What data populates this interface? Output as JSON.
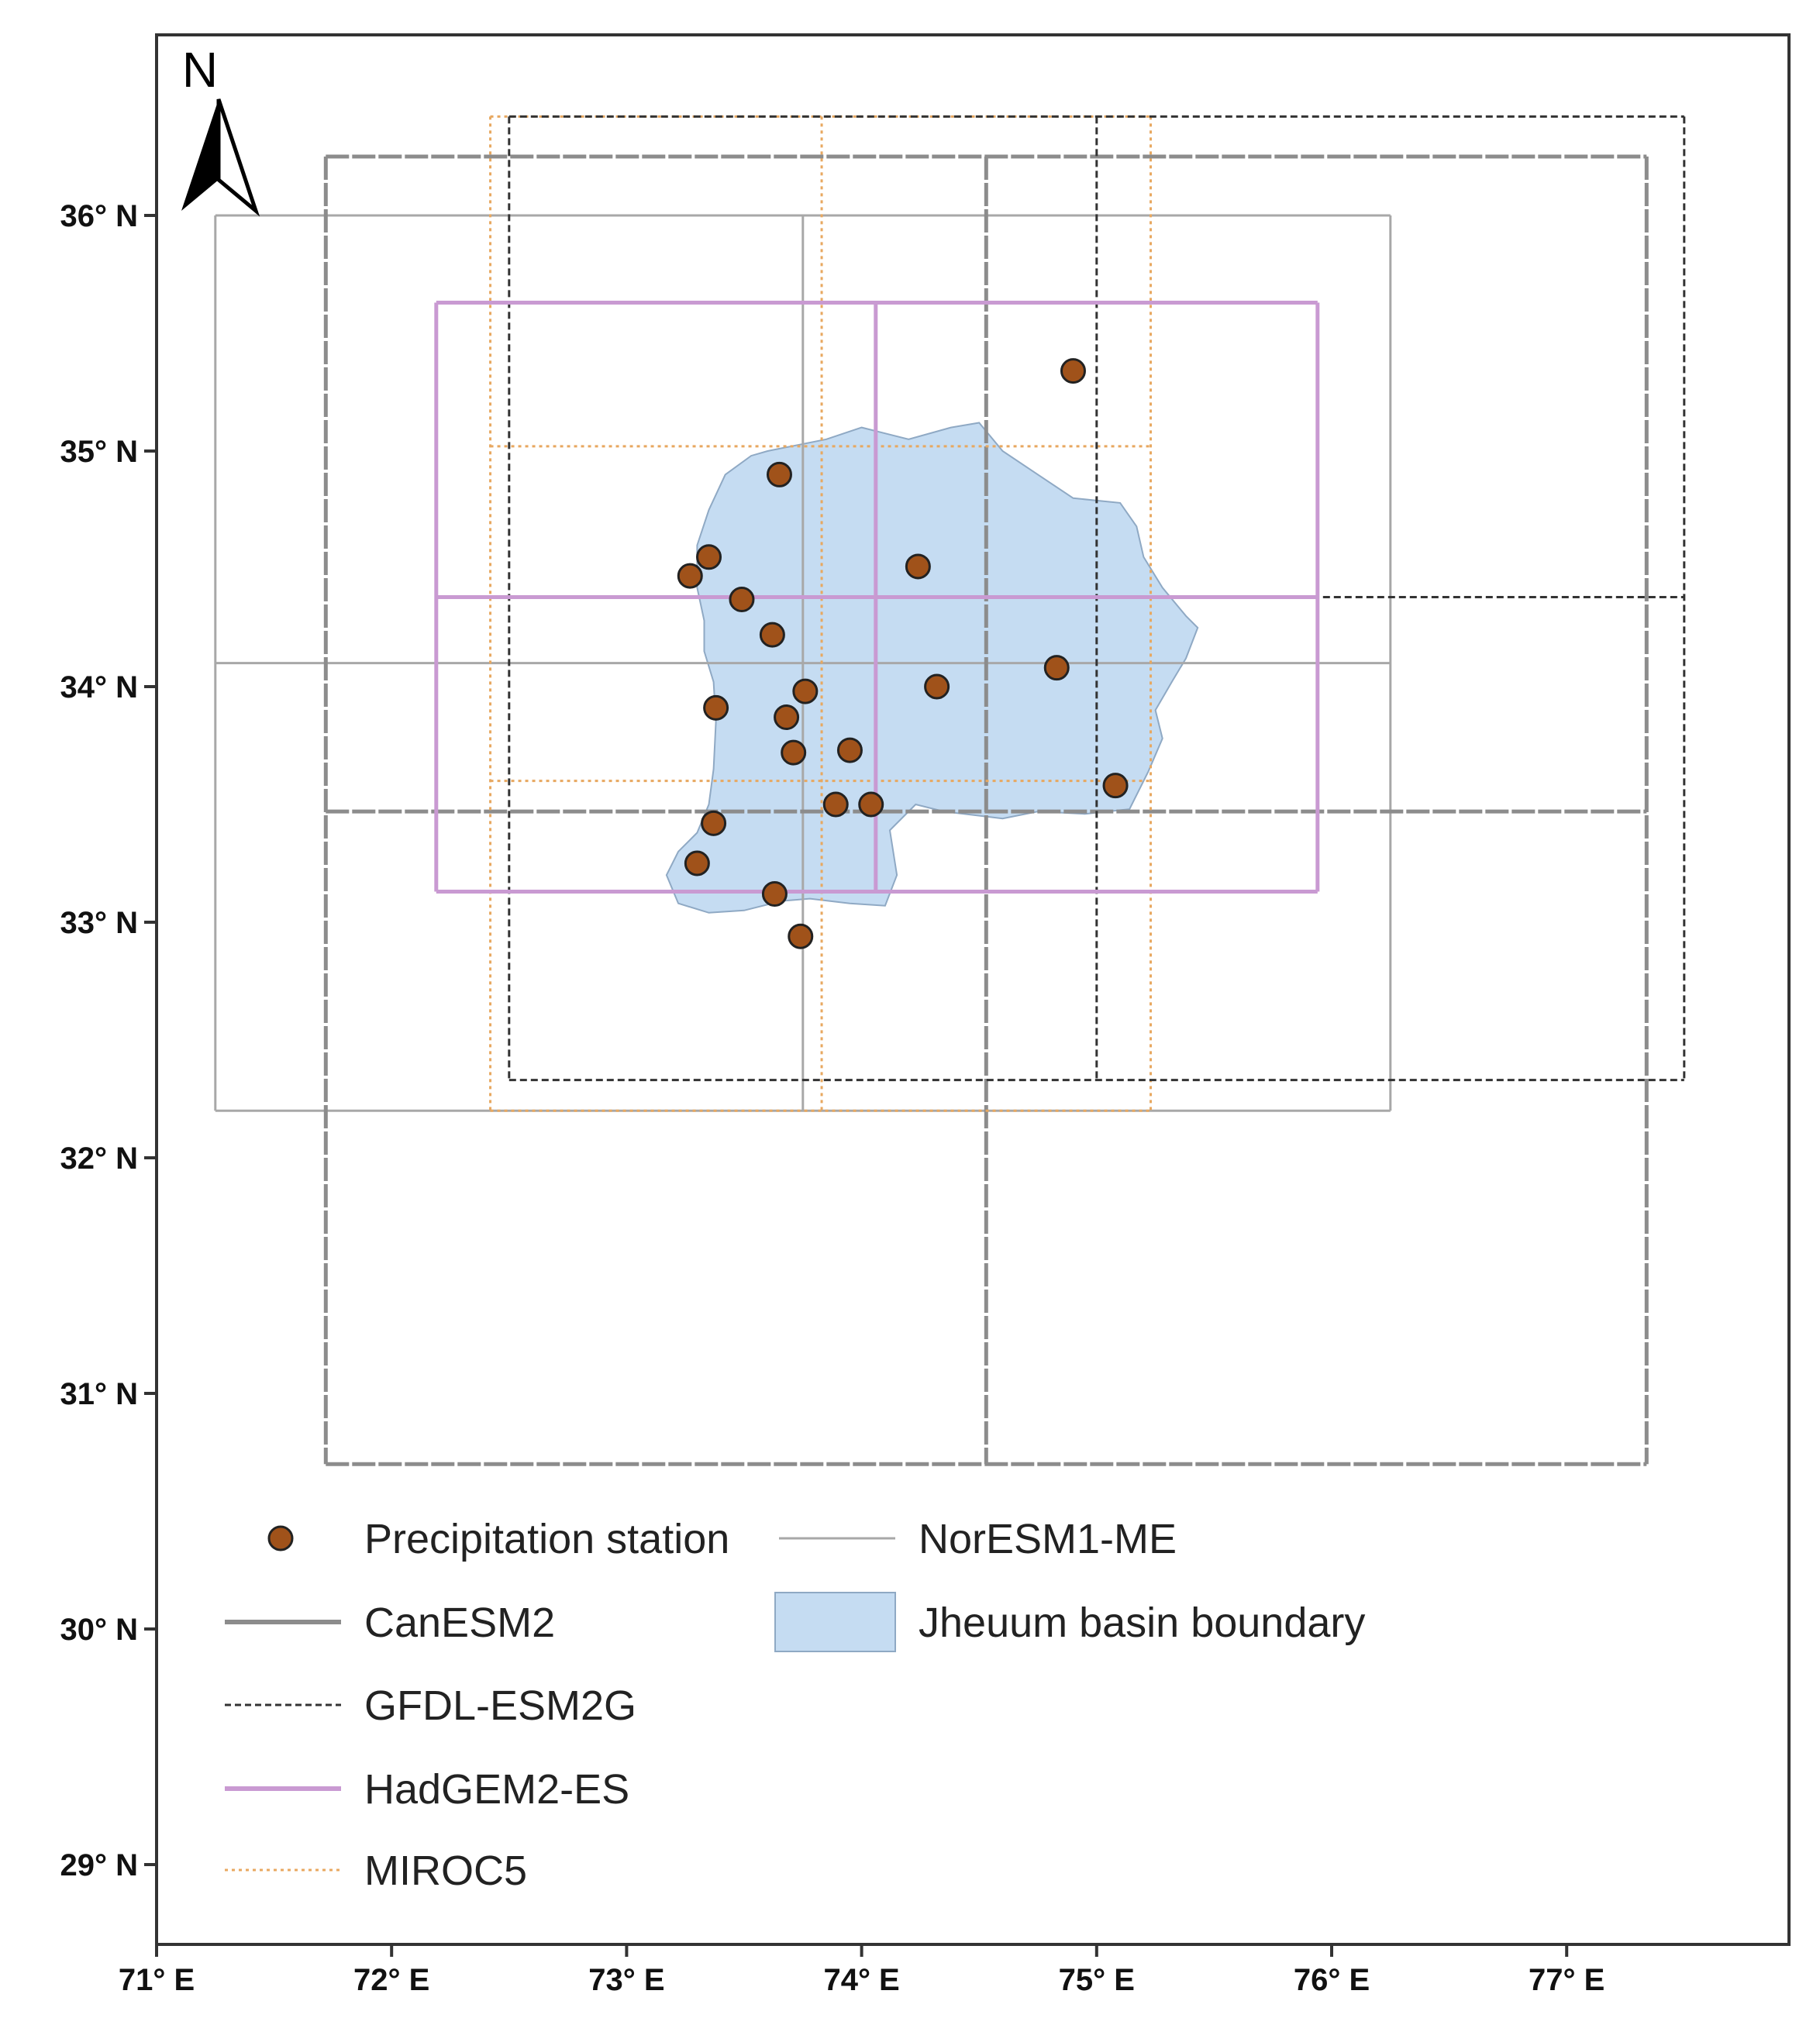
{
  "north_arrow": {
    "label": "N"
  },
  "axes": {
    "lon_ticks": [
      "71° E",
      "72° E",
      "73° E",
      "74° E",
      "75° E",
      "76° E",
      "77° E"
    ],
    "lat_ticks": [
      "29° N",
      "30° N",
      "31° N",
      "32° N",
      "33° N",
      "34° N",
      "35° N",
      "36° N"
    ],
    "lon_values": [
      71,
      72,
      73,
      74,
      75,
      76,
      77
    ],
    "lat_values": [
      29,
      30,
      31,
      32,
      33,
      34,
      35,
      36
    ]
  },
  "grids": {
    "NorESM1-ME": {
      "lon": [
        71.25,
        73.75,
        76.25
      ],
      "lat": [
        32.2,
        34.1,
        36.0
      ],
      "color": "#a8a8a8"
    },
    "CanESM2": {
      "lon": [
        71.72,
        74.53,
        77.34
      ],
      "lat": [
        30.7,
        33.47,
        36.25
      ],
      "color": "#8c8c8c"
    },
    "GFDL-ESM2G": {
      "lon": [
        72.5,
        75.0,
        77.5
      ],
      "lat": [
        32.33,
        34.38,
        36.42
      ],
      "color": "#333333"
    },
    "HadGEM2-ES": {
      "lon": [
        72.19,
        74.06,
        75.94
      ],
      "lat": [
        33.13,
        34.38,
        35.63
      ],
      "color": "#c99ad2"
    },
    "MIROC5": {
      "lon": [
        72.42,
        73.83,
        75.23
      ],
      "lat": [
        32.2,
        33.6,
        35.02,
        36.42
      ],
      "color": "#e8a860"
    }
  },
  "stations": [
    {
      "lon": 74.9,
      "lat": 35.34
    },
    {
      "lon": 73.65,
      "lat": 34.9
    },
    {
      "lon": 73.35,
      "lat": 34.55
    },
    {
      "lon": 73.27,
      "lat": 34.47
    },
    {
      "lon": 73.49,
      "lat": 34.37
    },
    {
      "lon": 74.24,
      "lat": 34.51
    },
    {
      "lon": 73.62,
      "lat": 34.22
    },
    {
      "lon": 73.76,
      "lat": 33.98
    },
    {
      "lon": 74.32,
      "lat": 34.0
    },
    {
      "lon": 74.83,
      "lat": 34.08
    },
    {
      "lon": 73.38,
      "lat": 33.91
    },
    {
      "lon": 73.68,
      "lat": 33.87
    },
    {
      "lon": 73.71,
      "lat": 33.72
    },
    {
      "lon": 73.95,
      "lat": 33.73
    },
    {
      "lon": 75.08,
      "lat": 33.58
    },
    {
      "lon": 73.89,
      "lat": 33.5
    },
    {
      "lon": 74.04,
      "lat": 33.5
    },
    {
      "lon": 73.37,
      "lat": 33.42
    },
    {
      "lon": 73.3,
      "lat": 33.25
    },
    {
      "lon": 73.63,
      "lat": 33.12
    },
    {
      "lon": 73.74,
      "lat": 32.94
    }
  ],
  "basin": {
    "outline": [
      [
        73.42,
        34.9
      ],
      [
        73.53,
        34.98
      ],
      [
        73.6,
        35.0
      ],
      [
        73.85,
        35.05
      ],
      [
        74.0,
        35.1
      ],
      [
        74.2,
        35.05
      ],
      [
        74.38,
        35.1
      ],
      [
        74.5,
        35.12
      ],
      [
        74.6,
        35.0
      ],
      [
        74.75,
        34.9
      ],
      [
        74.9,
        34.8
      ],
      [
        75.1,
        34.78
      ],
      [
        75.17,
        34.68
      ],
      [
        75.2,
        34.55
      ],
      [
        75.28,
        34.42
      ],
      [
        75.38,
        34.3
      ],
      [
        75.43,
        34.25
      ],
      [
        75.38,
        34.12
      ],
      [
        75.32,
        34.02
      ],
      [
        75.25,
        33.9
      ],
      [
        75.28,
        33.78
      ],
      [
        75.22,
        33.64
      ],
      [
        75.14,
        33.48
      ],
      [
        74.95,
        33.46
      ],
      [
        74.75,
        33.47
      ],
      [
        74.6,
        33.44
      ],
      [
        74.35,
        33.47
      ],
      [
        74.23,
        33.5
      ],
      [
        74.12,
        33.39
      ],
      [
        74.15,
        33.2
      ],
      [
        74.1,
        33.07
      ],
      [
        73.95,
        33.08
      ],
      [
        73.78,
        33.1
      ],
      [
        73.66,
        33.09
      ],
      [
        73.5,
        33.05
      ],
      [
        73.35,
        33.04
      ],
      [
        73.22,
        33.08
      ],
      [
        73.17,
        33.2
      ],
      [
        73.22,
        33.3
      ],
      [
        73.3,
        33.38
      ],
      [
        73.35,
        33.5
      ],
      [
        73.37,
        33.65
      ],
      [
        73.38,
        33.85
      ],
      [
        73.37,
        34.02
      ],
      [
        73.33,
        34.15
      ],
      [
        73.33,
        34.28
      ],
      [
        73.3,
        34.42
      ],
      [
        73.3,
        34.6
      ],
      [
        73.35,
        34.75
      ]
    ],
    "fill": "#c5dcf2",
    "stroke": "#8fa9c4"
  },
  "legend": {
    "station": "Precipitation station",
    "canesm2": "CanESM2",
    "gfdl": "GFDL-ESM2G",
    "hadgem": "HadGEM2-ES",
    "miroc": "MIROC5",
    "noresm": "NorESM1-ME",
    "basin": "Jheuum basin boundary"
  },
  "colors": {
    "station_fill": "#a0521a",
    "frame": "#333333"
  }
}
